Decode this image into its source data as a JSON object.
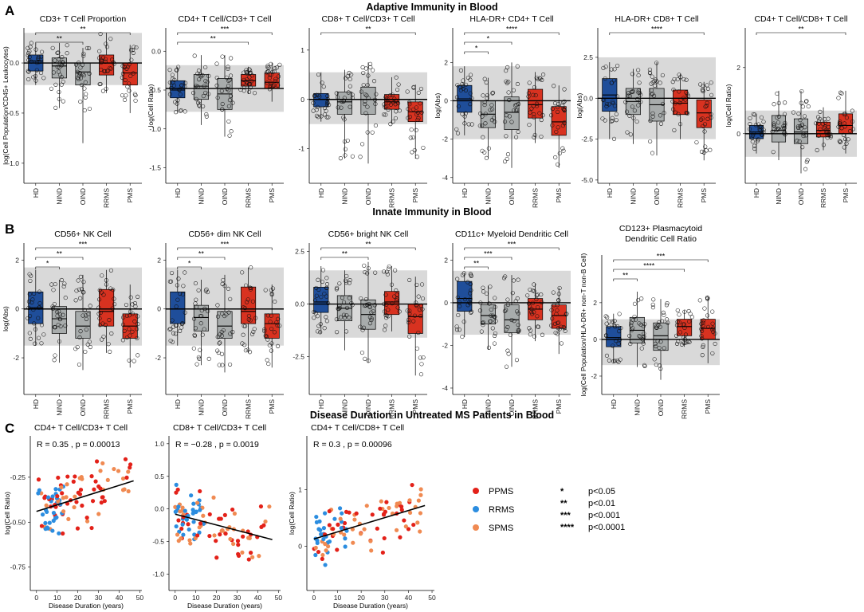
{
  "colors": {
    "HD": "#1f4e9a",
    "NIND": "#a8acac",
    "OIND": "#a8acac",
    "RRMS": "#d83220",
    "PMS": "#d83220",
    "band": "#d9d9d9",
    "PPMS_pt": "#e32119",
    "RRMS_pt": "#2b8de0",
    "SPMS_pt": "#f08a52"
  },
  "sections": {
    "A": {
      "letter": "A",
      "title": "Adaptive Immunity in Blood"
    },
    "B": {
      "letter": "B",
      "title": "Innate Immunity in Blood"
    },
    "C": {
      "letter": "C",
      "title": "Disease Duration in Untreated MS Patients in Blood"
    }
  },
  "legend": {
    "groups": [
      {
        "label": "PPMS",
        "color_key": "PPMS_pt"
      },
      {
        "label": "RRMS",
        "color_key": "RRMS_pt"
      },
      {
        "label": "SPMS",
        "color_key": "SPMS_pt"
      }
    ],
    "significance": [
      {
        "stars": "*",
        "text": "p<0.05"
      },
      {
        "stars": "**",
        "text": "p<0.01"
      },
      {
        "stars": "***",
        "text": "p<0.001"
      },
      {
        "stars": "****",
        "text": "p<0.0001"
      }
    ]
  },
  "chart_data": [
    {
      "id": "A1",
      "type": "box",
      "title": "CD3+ T Cell Proportion",
      "ylabel": "log(Cell Population/CD45+ Leukocytes)",
      "categories": [
        "HD",
        "NIND",
        "OIND",
        "RRMS",
        "PMS"
      ],
      "ylim": [
        -1.2,
        0.35
      ],
      "yticks": [
        0.0,
        -0.5,
        -1.0
      ],
      "yticklabels": [
        "0.0",
        "-0.5",
        "-1.0"
      ],
      "ref": 0.0,
      "band": [
        -0.22,
        0.3
      ],
      "boxes": [
        {
          "q1": -0.08,
          "med": 0.02,
          "q3": 0.08,
          "lo": -0.22,
          "hi": 0.2
        },
        {
          "q1": -0.15,
          "med": -0.03,
          "q3": 0.05,
          "lo": -0.45,
          "hi": 0.2
        },
        {
          "q1": -0.22,
          "med": -0.09,
          "q3": 0.0,
          "lo": -0.8,
          "hi": 0.15
        },
        {
          "q1": -0.12,
          "med": 0.0,
          "q3": 0.08,
          "lo": -0.3,
          "hi": 0.3
        },
        {
          "q1": -0.22,
          "med": -0.1,
          "q3": 0.0,
          "lo": -0.5,
          "hi": 0.18
        }
      ],
      "sig": [
        {
          "from": 0,
          "to": 2,
          "label": "**"
        },
        {
          "from": 0,
          "to": 4,
          "label": "**"
        }
      ]
    },
    {
      "id": "A2",
      "type": "box",
      "title": "CD4+ T Cell/CD3+ T Cell",
      "ylabel": "log(Cell Ratio)",
      "categories": [
        "HD",
        "NIND",
        "OIND",
        "RRMS",
        "PMS"
      ],
      "ylim": [
        -1.7,
        0.3
      ],
      "yticks": [
        0.0,
        -0.5,
        -1.0,
        -1.5
      ],
      "yticklabels": [
        "0.0",
        "-0.5",
        "-1.0",
        "-1.5"
      ],
      "ref": -0.48,
      "band": [
        -0.78,
        -0.18
      ],
      "boxes": [
        {
          "q1": -0.6,
          "med": -0.5,
          "q3": -0.38,
          "lo": -0.8,
          "hi": -0.2
        },
        {
          "q1": -0.62,
          "med": -0.45,
          "q3": -0.3,
          "lo": -0.95,
          "hi": -0.05
        },
        {
          "q1": -0.75,
          "med": -0.55,
          "q3": -0.35,
          "lo": -1.1,
          "hi": -0.05
        },
        {
          "q1": -0.45,
          "med": -0.38,
          "q3": -0.3,
          "lo": -0.55,
          "hi": -0.2
        },
        {
          "q1": -0.48,
          "med": -0.4,
          "q3": -0.28,
          "lo": -0.65,
          "hi": -0.15
        }
      ],
      "sig": [
        {
          "from": 0,
          "to": 3,
          "label": "**"
        },
        {
          "from": 0,
          "to": 4,
          "label": "***"
        }
      ]
    },
    {
      "id": "A3",
      "type": "box",
      "title": "CD8+ T Cell/CD3+ T Cell",
      "ylabel": "",
      "categories": [
        "HD",
        "NIND",
        "OIND",
        "RRMS",
        "PMS"
      ],
      "ylim": [
        -1.7,
        1.45
      ],
      "yticks": [
        1,
        0,
        -1
      ],
      "yticklabels": [
        "1",
        "0",
        "-1"
      ],
      "ref": 0.0,
      "band": [
        -0.5,
        0.55
      ],
      "boxes": [
        {
          "q1": -0.15,
          "med": 0.0,
          "q3": 0.12,
          "lo": -0.45,
          "hi": 0.55
        },
        {
          "q1": -0.3,
          "med": -0.05,
          "q3": 0.15,
          "lo": -1.2,
          "hi": 0.6
        },
        {
          "q1": -0.3,
          "med": 0.0,
          "q3": 0.25,
          "lo": -1.3,
          "hi": 0.75
        },
        {
          "q1": -0.2,
          "med": -0.05,
          "q3": 0.1,
          "lo": -0.5,
          "hi": 0.45
        },
        {
          "q1": -0.45,
          "med": -0.25,
          "q3": -0.05,
          "lo": -1.2,
          "hi": 0.3
        }
      ],
      "sig": [
        {
          "from": 0,
          "to": 4,
          "label": "**"
        }
      ]
    },
    {
      "id": "A4",
      "type": "box",
      "title": "HLA-DR+ CD4+ T Cell",
      "ylabel": "log(Abs)",
      "categories": [
        "HD",
        "NIND",
        "OIND",
        "RRMS",
        "PMS"
      ],
      "ylim": [
        -4.3,
        3.8
      ],
      "yticks": [
        2,
        0,
        -2,
        -4
      ],
      "yticklabels": [
        "2",
        "0",
        "-2",
        "-4"
      ],
      "ref": 0.0,
      "band": [
        -2.0,
        1.8
      ],
      "boxes": [
        {
          "q1": -0.6,
          "med": 0.1,
          "q3": 0.8,
          "lo": -1.8,
          "hi": 1.8
        },
        {
          "q1": -1.4,
          "med": -0.7,
          "q3": 0.0,
          "lo": -3.0,
          "hi": 1.2
        },
        {
          "q1": -1.5,
          "med": -0.6,
          "q3": 0.2,
          "lo": -3.5,
          "hi": 2.0
        },
        {
          "q1": -0.9,
          "med": -0.2,
          "q3": 0.6,
          "lo": -2.2,
          "hi": 1.5
        },
        {
          "q1": -1.8,
          "med": -1.1,
          "q3": -0.3,
          "lo": -3.5,
          "hi": 0.8
        }
      ],
      "sig": [
        {
          "from": 0,
          "to": 1,
          "label": "*"
        },
        {
          "from": 0,
          "to": 2,
          "label": "*"
        },
        {
          "from": 0,
          "to": 4,
          "label": "****"
        }
      ]
    },
    {
      "id": "A5",
      "type": "box",
      "title": "HLA-DR+ CD8+ T Cell",
      "ylabel": "log(Abs)",
      "categories": [
        "HD",
        "NIND",
        "OIND",
        "RRMS",
        "PMS"
      ],
      "ylim": [
        -5.2,
        4.3
      ],
      "yticks": [
        2.5,
        0.0,
        -2.5,
        -5.0
      ],
      "yticklabels": [
        "2.5",
        "0.0",
        "-2.5",
        "-5.0"
      ],
      "ref": 0.0,
      "band": [
        -2.5,
        2.5
      ],
      "boxes": [
        {
          "q1": -0.8,
          "med": 0.2,
          "q3": 1.2,
          "lo": -2.5,
          "hi": 2.2
        },
        {
          "q1": -1.0,
          "med": -0.2,
          "q3": 0.6,
          "lo": -2.8,
          "hi": 1.8
        },
        {
          "q1": -1.4,
          "med": -0.4,
          "q3": 0.6,
          "lo": -3.5,
          "hi": 2.2
        },
        {
          "q1": -1.0,
          "med": -0.3,
          "q3": 0.5,
          "lo": -2.5,
          "hi": 1.5
        },
        {
          "q1": -1.8,
          "med": -0.9,
          "q3": -0.1,
          "lo": -3.8,
          "hi": 1.0
        }
      ],
      "sig": [
        {
          "from": 0,
          "to": 4,
          "label": "****"
        }
      ]
    },
    {
      "id": "A6",
      "type": "box",
      "title": "CD4+ T Cell/CD8+ T Cell",
      "ylabel": "log(Cell Ratio)",
      "categories": [
        "HD",
        "NIND",
        "OIND",
        "RRMS",
        "PMS"
      ],
      "ylim": [
        -1.5,
        3.2
      ],
      "yticks": [
        2,
        0
      ],
      "yticklabels": [
        "2",
        "0"
      ],
      "ref": 0.0,
      "band": [
        -0.7,
        0.7
      ],
      "boxes": [
        {
          "q1": -0.15,
          "med": 0.05,
          "q3": 0.25,
          "lo": -0.6,
          "hi": 0.6
        },
        {
          "q1": -0.25,
          "med": 0.1,
          "q3": 0.55,
          "lo": -0.8,
          "hi": 1.3
        },
        {
          "q1": -0.3,
          "med": 0.05,
          "q3": 0.45,
          "lo": -1.2,
          "hi": 1.3
        },
        {
          "q1": -0.1,
          "med": 0.1,
          "q3": 0.35,
          "lo": -0.5,
          "hi": 0.8
        },
        {
          "q1": 0.0,
          "med": 0.25,
          "q3": 0.6,
          "lo": -0.6,
          "hi": 1.3
        }
      ],
      "sig": [
        {
          "from": 0,
          "to": 4,
          "label": "**"
        }
      ]
    },
    {
      "id": "B1",
      "type": "box",
      "title": "CD56+ NK Cell",
      "ylabel": "log(Abs)",
      "categories": [
        "HD",
        "NIND",
        "OIND",
        "RRMS",
        "PMS"
      ],
      "ylim": [
        -3.5,
        2.7
      ],
      "yticks": [
        2,
        0,
        -2
      ],
      "yticklabels": [
        "2",
        "0",
        "-2"
      ],
      "ref": 0.0,
      "band": [
        -1.5,
        1.7
      ],
      "boxes": [
        {
          "q1": -0.6,
          "med": 0.05,
          "q3": 0.7,
          "lo": -1.5,
          "hi": 1.6
        },
        {
          "q1": -1.0,
          "med": -0.4,
          "q3": 0.1,
          "lo": -2.2,
          "hi": 1.2
        },
        {
          "q1": -1.2,
          "med": -0.7,
          "q3": -0.1,
          "lo": -2.5,
          "hi": 1.4
        },
        {
          "q1": -0.7,
          "med": -0.1,
          "q3": 0.8,
          "lo": -1.8,
          "hi": 1.6
        },
        {
          "q1": -1.2,
          "med": -0.7,
          "q3": -0.2,
          "lo": -2.4,
          "hi": 1.0
        }
      ],
      "sig": [
        {
          "from": 0,
          "to": 1,
          "label": "*"
        },
        {
          "from": 0,
          "to": 2,
          "label": "**"
        },
        {
          "from": 0,
          "to": 4,
          "label": "***"
        }
      ]
    },
    {
      "id": "B2",
      "type": "box",
      "title": "CD56+ dim NK Cell",
      "ylabel": "",
      "categories": [
        "HD",
        "NIND",
        "OIND",
        "RRMS",
        "PMS"
      ],
      "ylim": [
        -3.5,
        2.7
      ],
      "yticks": [
        2,
        0,
        -2
      ],
      "yticklabels": [
        "2",
        "0",
        "-2"
      ],
      "ref": 0.0,
      "band": [
        -1.5,
        1.7
      ],
      "boxes": [
        {
          "q1": -0.6,
          "med": 0.0,
          "q3": 0.7,
          "lo": -1.5,
          "hi": 1.6
        },
        {
          "q1": -0.9,
          "med": -0.35,
          "q3": 0.15,
          "lo": -2.3,
          "hi": 1.2
        },
        {
          "q1": -1.2,
          "med": -0.7,
          "q3": -0.1,
          "lo": -2.6,
          "hi": 1.4
        },
        {
          "q1": -0.6,
          "med": -0.1,
          "q3": 0.9,
          "lo": -1.8,
          "hi": 1.7
        },
        {
          "q1": -1.2,
          "med": -0.6,
          "q3": -0.2,
          "lo": -2.4,
          "hi": 1.0
        }
      ],
      "sig": [
        {
          "from": 0,
          "to": 1,
          "label": "*"
        },
        {
          "from": 0,
          "to": 2,
          "label": "**"
        },
        {
          "from": 0,
          "to": 4,
          "label": "***"
        }
      ]
    },
    {
      "id": "B3",
      "type": "box",
      "title": "CD56+ bright NK Cell",
      "ylabel": "",
      "categories": [
        "HD",
        "NIND",
        "OIND",
        "RRMS",
        "PMS"
      ],
      "ylim": [
        -4.3,
        2.9
      ],
      "yticks": [
        2.5,
        0.0,
        -2.5
      ],
      "yticklabels": [
        "2.5",
        "0.0",
        "-2.5"
      ],
      "ref": 0.0,
      "band": [
        -1.6,
        1.6
      ],
      "boxes": [
        {
          "q1": -0.4,
          "med": 0.1,
          "q3": 0.8,
          "lo": -1.4,
          "hi": 1.8
        },
        {
          "q1": -0.8,
          "med": -0.2,
          "q3": 0.4,
          "lo": -2.2,
          "hi": 1.6
        },
        {
          "q1": -1.2,
          "med": -0.5,
          "q3": 0.2,
          "lo": -2.8,
          "hi": 2.0
        },
        {
          "q1": -0.5,
          "med": 0.1,
          "q3": 0.6,
          "lo": -1.3,
          "hi": 1.8
        },
        {
          "q1": -1.4,
          "med": -0.6,
          "q3": 0.0,
          "lo": -3.4,
          "hi": 1.3
        }
      ],
      "sig": [
        {
          "from": 0,
          "to": 2,
          "label": "**"
        },
        {
          "from": 0,
          "to": 4,
          "label": "**"
        }
      ]
    },
    {
      "id": "B4",
      "type": "box",
      "title": "CD11c+ Myeloid Dendritic Cell",
      "ylabel": "",
      "categories": [
        "HD",
        "NIND",
        "OIND",
        "RRMS",
        "PMS"
      ],
      "ylim": [
        -4.3,
        2.8
      ],
      "yticks": [
        2,
        0,
        -2,
        -4
      ],
      "yticklabels": [
        "2",
        "0",
        "-2",
        "-4"
      ],
      "ref": 0.0,
      "band": [
        -1.5,
        1.5
      ],
      "boxes": [
        {
          "q1": -0.4,
          "med": 0.2,
          "q3": 1.0,
          "lo": -1.6,
          "hi": 1.4
        },
        {
          "q1": -1.0,
          "med": -0.6,
          "q3": -0.1,
          "lo": -2.2,
          "hi": 0.8
        },
        {
          "q1": -1.4,
          "med": -0.8,
          "q3": -0.1,
          "lo": -3.0,
          "hi": 1.3
        },
        {
          "q1": -0.8,
          "med": -0.3,
          "q3": 0.2,
          "lo": -1.8,
          "hi": 0.9
        },
        {
          "q1": -1.2,
          "med": -0.6,
          "q3": -0.1,
          "lo": -2.4,
          "hi": 0.7
        }
      ],
      "sig": [
        {
          "from": 0,
          "to": 1,
          "label": "**"
        },
        {
          "from": 0,
          "to": 2,
          "label": "***"
        },
        {
          "from": 0,
          "to": 4,
          "label": "***"
        }
      ]
    },
    {
      "id": "B5",
      "type": "box",
      "title": "CD123+ Plasmacytoid",
      "title2": "Dendritic Cell Ratio",
      "ylabel": "log(Cell Population/HLA-DR+ non-T non-B Cell)",
      "categories": [
        "HD",
        "NIND",
        "OIND",
        "RRMS",
        "PMS"
      ],
      "ylim": [
        -3.0,
        4.6
      ],
      "yticks": [
        2,
        0,
        -2
      ],
      "yticklabels": [
        "2",
        "0",
        "-2"
      ],
      "ref": 0.0,
      "band": [
        -1.4,
        1.1
      ],
      "boxes": [
        {
          "q1": -0.4,
          "med": 0.1,
          "q3": 0.7,
          "lo": -1.3,
          "hi": 1.4
        },
        {
          "q1": -0.2,
          "med": 0.5,
          "q3": 1.2,
          "lo": -1.5,
          "hi": 2.6
        },
        {
          "q1": -0.6,
          "med": 0.2,
          "q3": 0.9,
          "lo": -2.2,
          "hi": 2.2
        },
        {
          "q1": 0.2,
          "med": 0.7,
          "q3": 1.1,
          "lo": -0.4,
          "hi": 1.6
        },
        {
          "q1": 0.0,
          "med": 0.6,
          "q3": 1.1,
          "lo": -1.3,
          "hi": 2.3
        }
      ],
      "sig": [
        {
          "from": 0,
          "to": 1,
          "label": "**"
        },
        {
          "from": 0,
          "to": 3,
          "label": "****"
        },
        {
          "from": 0,
          "to": 4,
          "label": "***"
        }
      ]
    },
    {
      "id": "C1",
      "type": "scatter",
      "title": "CD4+ T Cell/CD3+ T Cell",
      "ylabel": "log(Cell Ratio)",
      "xlabel": "Disease Duration (years)",
      "stat": "R = 0.35 , p = 0.00013",
      "xlim": [
        -3,
        51
      ],
      "ylim": [
        -0.88,
        -0.02
      ],
      "xticks": [
        0,
        10,
        20,
        30,
        40,
        50
      ],
      "yticks": [
        -0.25,
        -0.5,
        -0.75
      ],
      "yticklabels": [
        "-0.25",
        "-0.50",
        "-0.75"
      ],
      "fit": [
        [
          0,
          -0.44
        ],
        [
          47,
          -0.27
        ]
      ],
      "seed": 11,
      "ycenter": -0.37,
      "yspread": 0.13,
      "ylo": -0.86,
      "yhi": -0.15
    },
    {
      "id": "C2",
      "type": "scatter",
      "title": "CD8+ T Cell/CD3+ T Cell",
      "ylabel": "",
      "xlabel": "Disease Duration (years)",
      "stat": "R = −0.28 , p = 0.0019",
      "xlim": [
        -3,
        51
      ],
      "ylim": [
        -1.25,
        1.12
      ],
      "xticks": [
        0,
        10,
        20,
        30,
        40,
        50
      ],
      "yticks": [
        1.0,
        0.5,
        0.0,
        -0.5,
        -1.0
      ],
      "yticklabels": [
        "1.0",
        "0.5",
        "0.0",
        "-0.5",
        "-1.0"
      ],
      "fit": [
        [
          0,
          -0.08
        ],
        [
          47,
          -0.47
        ]
      ],
      "seed": 23,
      "ycenter": -0.15,
      "yspread": 0.38,
      "ylo": -1.2,
      "yhi": 0.45
    },
    {
      "id": "C3",
      "type": "scatter",
      "title": "CD4+ T Cell/CD8+ T Cell",
      "ylabel": "log(Cell Ratio)",
      "xlabel": "Disease Duration (years)",
      "stat": "R = 0.3 , p = 0.00096",
      "xlim": [
        -3,
        51
      ],
      "ylim": [
        -0.78,
        1.95
      ],
      "xticks": [
        0,
        10,
        20,
        30,
        40,
        50
      ],
      "yticks": [
        1,
        0
      ],
      "yticklabels": [
        "1",
        "0"
      ],
      "fit": [
        [
          0,
          0.13
        ],
        [
          47,
          0.72
        ]
      ],
      "seed": 37,
      "ycenter": 0.4,
      "yspread": 0.4,
      "ylo": -0.7,
      "yhi": 1.7
    }
  ]
}
